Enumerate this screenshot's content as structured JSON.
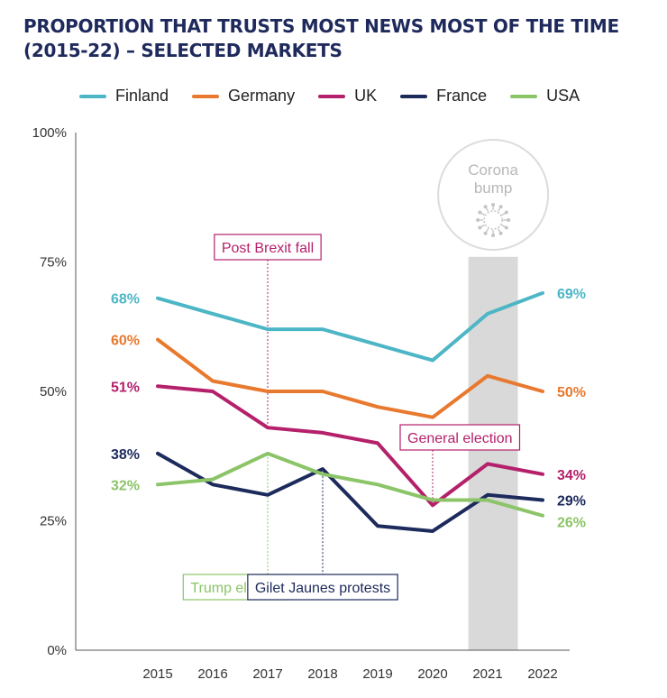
{
  "title": {
    "line1": "PROPORTION THAT TRUSTS MOST NEWS MOST OF THE TIME",
    "line2": "(2015-22) – SELECTED MARKETS"
  },
  "colors": {
    "Finland": "#4db6c6",
    "Germany": "#e8792e",
    "UK": "#b5206b",
    "France": "#1d2a5c",
    "USA": "#8cc468",
    "shade": "#d9d9d9",
    "circle": "#dcdcdc"
  },
  "chart_data": {
    "type": "line",
    "x": [
      "2015",
      "2016",
      "2017",
      "2018",
      "2019",
      "2020",
      "2021",
      "2022"
    ],
    "ylim": [
      0,
      100
    ],
    "yticks": [
      "0%",
      "25%",
      "50%",
      "75%",
      "100%"
    ],
    "ytick_values": [
      0,
      25,
      50,
      75,
      100
    ],
    "legend_position": "top",
    "grid": false,
    "series": [
      {
        "name": "Finland",
        "values": [
          68,
          65,
          62,
          62,
          59,
          56,
          65,
          69
        ],
        "start_label": "68%",
        "end_label": "69%"
      },
      {
        "name": "Germany",
        "values": [
          60,
          52,
          50,
          50,
          47,
          45,
          53,
          50
        ],
        "start_label": "60%",
        "end_label": "50%"
      },
      {
        "name": "UK",
        "values": [
          51,
          50,
          43,
          42,
          40,
          28,
          36,
          34
        ],
        "start_label": "51%",
        "end_label": "34%"
      },
      {
        "name": "France",
        "values": [
          38,
          32,
          30,
          35,
          24,
          23,
          30,
          29
        ],
        "start_label": "38%",
        "end_label": "29%"
      },
      {
        "name": "USA",
        "values": [
          32,
          33,
          38,
          34,
          32,
          29,
          29,
          26
        ],
        "start_label": "32%",
        "end_label": "26%"
      }
    ],
    "highlight_band": {
      "from": 2020.65,
      "to": 2021.55,
      "label_line1": "Corona",
      "label_line2": "bump"
    },
    "annotations": [
      {
        "text": "Post Brexit fall",
        "series": "UK",
        "x_index": 2,
        "placement": "above"
      },
      {
        "text": "General election",
        "series": "UK",
        "x_index": 5,
        "placement": "above"
      },
      {
        "text": "Trump elected",
        "series": "USA",
        "x_index": 2,
        "placement": "below"
      },
      {
        "text": "Gilet Jaunes protests",
        "series": "France",
        "x_index": 3,
        "placement": "below"
      }
    ]
  }
}
